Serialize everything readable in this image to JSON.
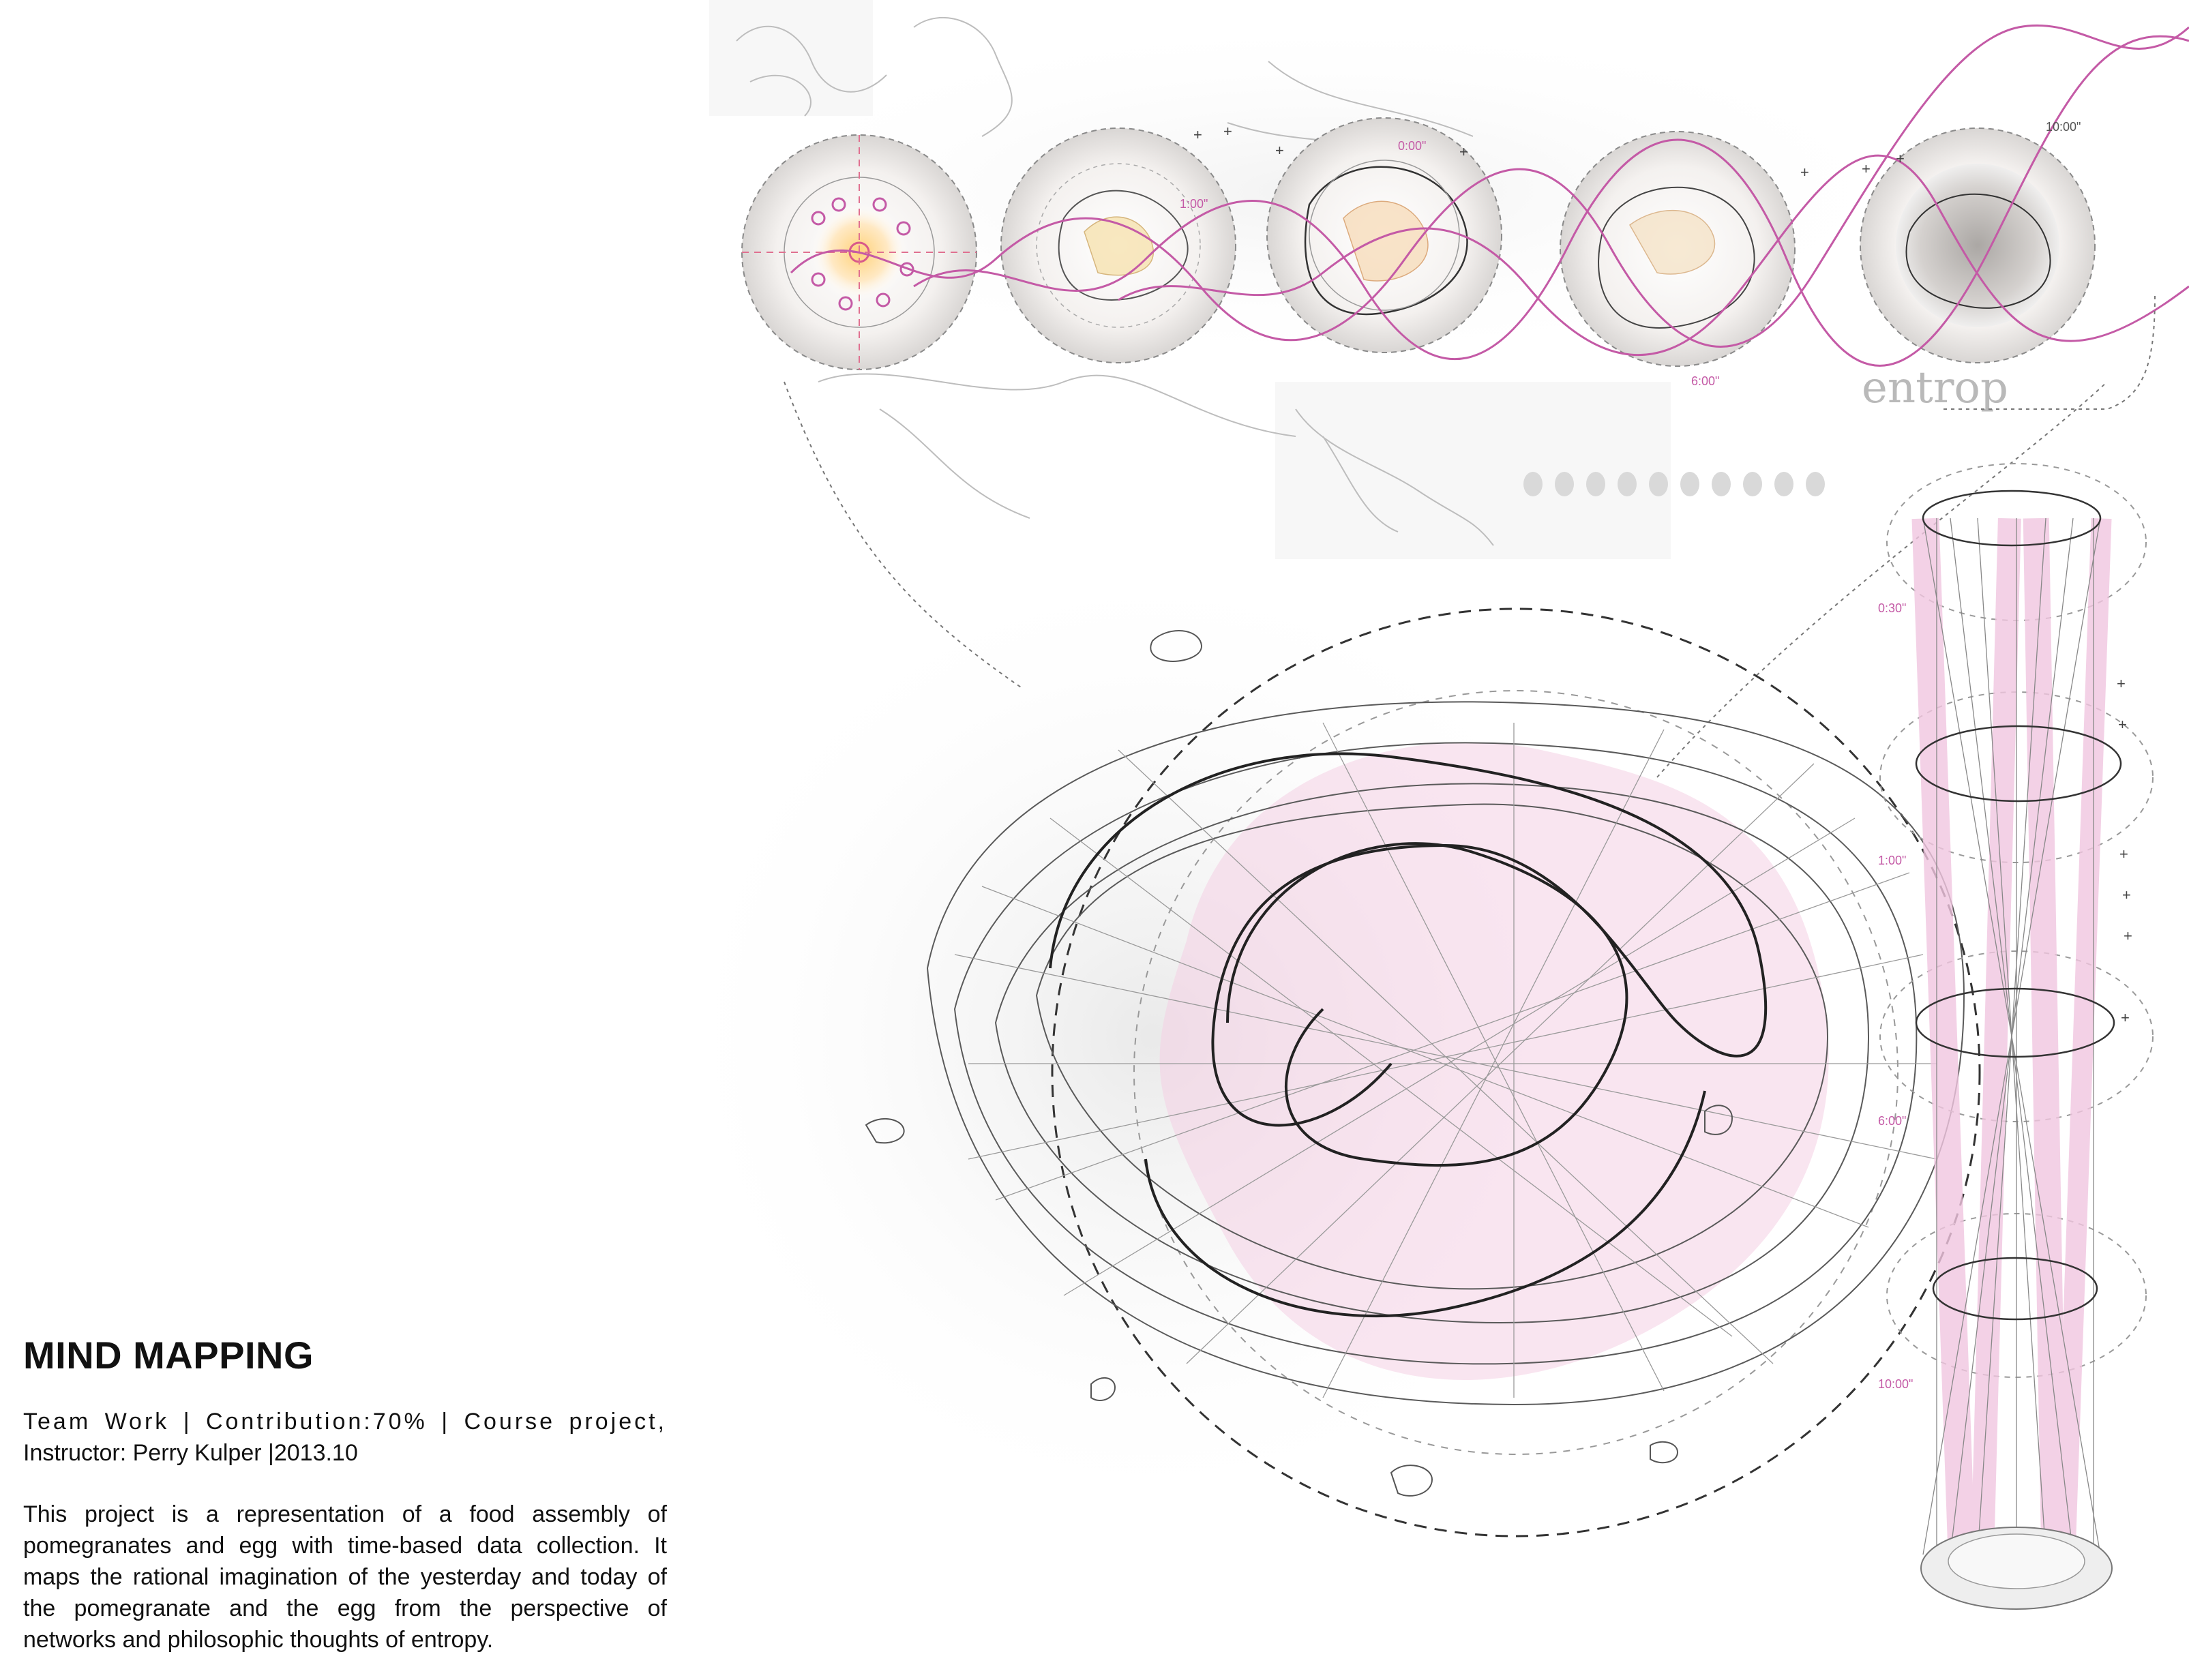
{
  "title": "MIND MAPPING",
  "meta": {
    "line1": "Team Work | Contribution:70% | Course project,",
    "line2": "Instructor: Perry Kulper |2013.10"
  },
  "description": "This project is a representation of a food assembly of pomegranates and egg with time-based data collection. It maps the rational imagination of the yesterday and today of the pomegranate and the egg from the perspective of networks and philosophic thoughts of entropy.",
  "diagram": {
    "entropy_word": "entrop",
    "top_time_labels": [
      "0:00\"",
      "1:00\"",
      "6:00\"",
      "10:00\""
    ],
    "tower_time_labels": [
      "0:30\"",
      "1:00\"",
      "6:00\"",
      "10:00\""
    ],
    "colors": {
      "accent": "#c45aa6",
      "pink_fill": "#f1c6e0",
      "ink": "#333333",
      "dashed": "#555555"
    }
  }
}
